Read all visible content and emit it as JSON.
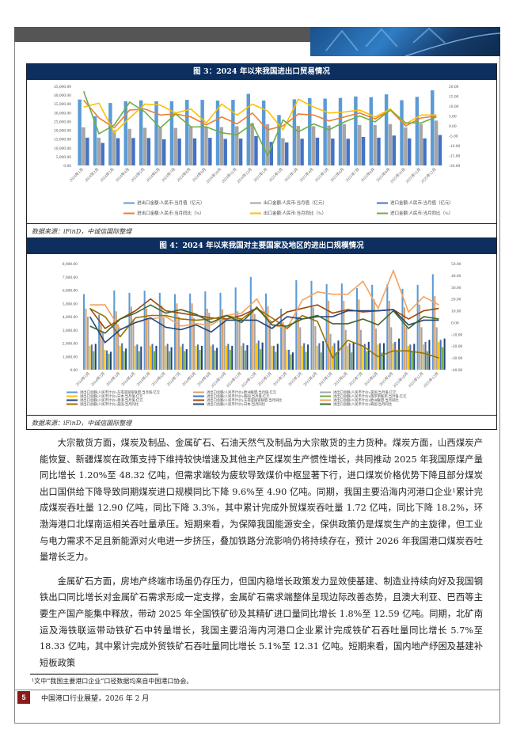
{
  "figure3": {
    "title": "图 3：2024 年以来我国进出口贸易情况",
    "source": "数据来源：iFinD，中诚信国际整理",
    "chart_data": {
      "type": "bar+line",
      "categories": [
        "2024年1月",
        "2024年2月",
        "2024年3月",
        "2024年4月",
        "2024年5月",
        "2024年6月",
        "2024年7月",
        "2024年8月",
        "2024年9月",
        "2024年10月",
        "2024年11月",
        "2024年12月",
        "2025年1月",
        "2025年2月",
        "2025年3月",
        "2025年4月",
        "2025年5月",
        "2025年6月",
        "2025年7月",
        "2025年8月",
        "2025年9月",
        "2025年10月",
        "2025年11月",
        "2025年12月"
      ],
      "ylim": [
        0,
        45000
      ],
      "y2lim": [
        -20,
        20
      ],
      "yticks": [
        "0.00",
        "5,000.00",
        "10,000.00",
        "15,000.00",
        "20,000.00",
        "25,000.00",
        "30,000.00",
        "35,000.00",
        "40,000.00",
        "45,000.00"
      ],
      "y2ticks": [
        "-20.00",
        "-15.00",
        "-10.00",
        "-5.00",
        "0.00",
        "5.00",
        "10.00",
        "15.00",
        "20.00"
      ],
      "bars": [
        {
          "name": "进出口金额:人民币:当月值（亿元）",
          "color": "#5b9bd5",
          "values": [
            37500,
            28000,
            35500,
            36500,
            37000,
            36500,
            36500,
            37300,
            37300,
            36900,
            37300,
            40700,
            36900,
            28700,
            37600,
            38300,
            38000,
            38400,
            39200,
            38800,
            40400,
            37100,
            39000,
            42700
          ]
        },
        {
          "name": "出口金额:人民币:当月值（亿元）",
          "color": "#a5a5a5",
          "values": [
            21700,
            15800,
            20000,
            20800,
            21400,
            21600,
            21300,
            21900,
            21900,
            21800,
            22300,
            24100,
            23500,
            15500,
            22500,
            22300,
            22700,
            23500,
            23000,
            23000,
            23500,
            21600,
            23600,
            25500
          ]
        },
        {
          "name": "进口金额:人民币:当月值（亿元）",
          "color": "#4472c4",
          "values": [
            15800,
            12800,
            15500,
            15600,
            15600,
            14900,
            15300,
            15400,
            15700,
            15100,
            15300,
            16700,
            13400,
            13100,
            15200,
            15800,
            15300,
            15200,
            16200,
            15800,
            17000,
            15400,
            15400,
            17300
          ]
        }
      ],
      "lines": [
        {
          "name": "进出口金额:人民币:当月同比（%）",
          "color": "#ed7d31",
          "values": [
            13,
            4,
            -1,
            8,
            8.5,
            5.5,
            6,
            4.5,
            0.5,
            4.5,
            1,
            6.5,
            -2,
            0,
            6,
            5.5,
            2.5,
            4.5,
            6.5,
            3.5,
            8,
            0,
            4,
            5
          ]
        },
        {
          "name": "出口金额:人民币:当月同比（%）",
          "color": "#ffc000",
          "values": [
            9.5,
            11.5,
            -3.5,
            4,
            11,
            10.5,
            6.5,
            8.5,
            1.5,
            11,
            5.5,
            11,
            7.5,
            -2,
            13.5,
            9.5,
            6.5,
            7,
            8,
            4.5,
            8.5,
            1,
            5.5,
            5.5
          ]
        },
        {
          "name": "进口金额:人民币:当月同比（%）",
          "color": "#70ad47",
          "values": [
            17.5,
            -4,
            0.5,
            12,
            7,
            -1,
            6,
            -0.5,
            -0.5,
            -3.5,
            -4.5,
            1,
            -15,
            3,
            -3,
            1,
            -2,
            2,
            5,
            2,
            8,
            1.5,
            1.5,
            4.5
          ]
        }
      ]
    }
  },
  "figure4": {
    "title": "图 4：2024 年以来我国对主要国家及地区的进出口规模情况",
    "source": "数据来源：iFinD，中诚信国际整理",
    "chart_data": {
      "type": "bar+line",
      "categories": [
        "2024年1月",
        "2024年2月",
        "2024年3月",
        "2024年4月",
        "2024年5月",
        "2024年6月",
        "2024年7月",
        "2024年8月",
        "2024年9月",
        "2024年10月",
        "2024年11月",
        "2024年12月",
        "2025年1月",
        "2025年2月",
        "2025年3月",
        "2025年4月",
        "2025年5月",
        "2025年6月",
        "2025年7月",
        "2025年8月",
        "2025年9月",
        "2025年10月",
        "2025年11月",
        "2025年12月"
      ],
      "ylim": [
        0,
        8000
      ],
      "y2lim": [
        -40,
        50
      ],
      "yticks": [
        "0.00",
        "1,000.00",
        "2,000.00",
        "3,000.00",
        "4,000.00",
        "5,000.00",
        "6,000.00",
        "7,000.00",
        "8,000.00"
      ],
      "y2ticks": [
        "-40.00",
        "-30.00",
        "-20.00",
        "-10.00",
        "0.00",
        "10.00",
        "20.00",
        "30.00",
        "40.00",
        "50.00"
      ],
      "bars": [
        {
          "name": "进出口总额(人民币计价):东南亚国家联盟:当月值:亿元",
          "color": "#5b9bd5",
          "values": [
            5700,
            4150,
            5980,
            5800,
            5950,
            5800,
            5700,
            5750,
            5900,
            5800,
            6200,
            7000,
            5750,
            4600,
            6750,
            6700,
            6450,
            6500,
            6150,
            6400,
            6450,
            6100,
            6400,
            7200
          ]
        },
        {
          "name": "进出口总额(人民币计价):欧洲联盟:当月值:亿元",
          "color": "#dda06c",
          "values": [
            4600,
            3600,
            4400,
            4750,
            4600,
            4850,
            5000,
            5000,
            4600,
            4550,
            4400,
            4600,
            4800,
            3600,
            4000,
            4700,
            5200,
            5200,
            5300,
            5300,
            5200,
            4700,
            4900,
            5550
          ]
        },
        {
          "name": "进出口总额(人民币计价):美国:当月值:亿元",
          "color": "#a5a5a5",
          "values": [
            4000,
            2900,
            3400,
            3800,
            3800,
            3900,
            4000,
            3900,
            4300,
            3900,
            3700,
            4200,
            3500,
            3200,
            3200,
            3300,
            2700,
            3000,
            3000,
            3100,
            3200,
            3200,
            3200,
            3200
          ]
        },
        {
          "name": "进出口总额(人民币计价):日本:当月值:亿元",
          "color": "#ffc000",
          "values": [
            1800,
            1500,
            1800,
            1800,
            1800,
            1800,
            1750,
            1800,
            1800,
            1800,
            1800,
            2000,
            1800,
            1500,
            1800,
            1800,
            1800,
            1800,
            1800,
            1900,
            2000,
            1800,
            1900,
            2100
          ]
        },
        {
          "name": "进出口总额(人民币计价):韩国:当月值:亿元",
          "color": "#4472c4",
          "values": [
            1900,
            1450,
            2000,
            1900,
            1950,
            1950,
            1950,
            1900,
            1900,
            1950,
            2000,
            2200,
            1800,
            1500,
            2000,
            2000,
            2000,
            2000,
            1950,
            2000,
            2100,
            1900,
            2100,
            2250
          ]
        },
        {
          "name": "进出口总额(人民币计价):俄罗斯联邦:当月值:亿元",
          "color": "#70ad47",
          "values": [
            1400,
            1200,
            1400,
            1400,
            1400,
            1400,
            1400,
            1500,
            1450,
            1500,
            1450,
            1550,
            1350,
            1150,
            1350,
            1300,
            1300,
            1300,
            1400,
            1300,
            1400,
            1400,
            1400,
            1700
          ]
        },
        {
          "name": "进出口总额(人民币计价):香港:当月值:亿元",
          "color": "#264478",
          "values": [
            1950,
            1350,
            1600,
            1750,
            1800,
            1700,
            1550,
            1800,
            1650,
            1800,
            1850,
            2050,
            1950,
            1300,
            1900,
            2150,
            2200,
            2050,
            2100,
            2000,
            2350,
            1950,
            2250,
            2350
          ]
        }
      ],
      "lines": [
        {
          "name": "进出口总额(人民币计价):东南亚国家联盟:当月同比",
          "color": "#9e480e",
          "values": [
            12,
            -5,
            3,
            10,
            20,
            10,
            8,
            6,
            4,
            3,
            6,
            12,
            0,
            9,
            12,
            15,
            8,
            11,
            9,
            10,
            11,
            3,
            10,
            12
          ]
        },
        {
          "name": "进出口总额(人民币计价):欧洲联盟:当月同比",
          "color": "#f4a261",
          "values": [
            15,
            15,
            -6,
            0,
            3,
            5,
            -3,
            -1,
            -2,
            6,
            8,
            20,
            -2,
            -5,
            19,
            26,
            24,
            24,
            35,
            12,
            44,
            9,
            22,
            15
          ]
        },
        {
          "name": "进出口总额(人民币计价):美国:当月同比",
          "color": "#997300",
          "values": [
            12,
            5,
            -12,
            4,
            6,
            6,
            3,
            2,
            3,
            6,
            3,
            12,
            4,
            -5,
            6,
            1,
            -30,
            -15,
            -20,
            -29,
            -24,
            -24,
            -26,
            -30
          ]
        },
        {
          "name": "进出口总额(人民币计价):日本:当月同比",
          "color": "#264478",
          "values": [
            5,
            -17,
            -6,
            0,
            4,
            -4,
            -6,
            -2,
            -8,
            2,
            2,
            2,
            -5,
            5,
            3,
            5,
            5,
            10,
            10,
            10,
            11,
            -2,
            2,
            2
          ]
        },
        {
          "name": "进出口总额(人民币计价):韩国:当月同比",
          "color": "#43682b",
          "values": [
            -3,
            -9,
            3,
            8,
            15,
            8,
            11,
            7,
            0,
            6,
            0,
            13,
            -2,
            -3,
            3,
            6,
            -1,
            -1,
            3,
            -2,
            10,
            -5,
            5,
            3
          ]
        }
      ]
    }
  },
  "body": {
    "p1": "大宗散货方面，煤炭及制品、金属矿石、石油天然气及制品为大宗散货的主力货种。煤炭方面，山西煤炭产能恢复、新疆煤炭在政策支持下维持较快增速及其他主产区煤炭生产惯性增长，共同推动 2025 年我国原煤产量同比增长 1.20%至 48.32 亿吨，但需求端较为疲软导致煤价中枢显著下行，进口煤炭价格优势下降且部分煤炭出口国供给下降导致同期煤炭进口规模同比下降 9.6%至 4.90 亿吨。同期，我国主要沿海内河港口企业¹累计完成煤炭吞吐量 12.90 亿吨，同比下降 3.3%，其中累计完成外贸煤炭吞吐量 1.72 亿吨，同比下降 18.2%，环渤海港口北煤南运相关吞吐量承压。短期来看，为保障我国能源安全，保供政策仍是煤炭生产的主旋律，但工业与电力需求不足且新能源对火电进一步挤压，叠加铁路分流影响仍将持续存在，预计 2026 年我国港口煤炭吞吐量增长乏力。",
    "p2": "金属矿石方面，房地产终端市场虽仍存压力，但国内稳增长政策发力显效使基建、制造业持续向好及我国钢铁出口同比增长对金属矿石需求形成一定支撑，金属矿石需求端整体呈现边际改善态势，且澳大利亚、巴西等主要生产国产能集中释放，带动 2025 年全国铁矿砂及其精矿进口量同比增长 1.8%至 12.59 亿吨。同期，北矿南运及海铁联运带动铁矿石中转量增长，我国主要沿海内河港口企业累计完成铁矿石吞吐量同比增长 5.7%至 18.33 亿吨，其中累计完成外贸铁矿石吞吐量同比增长 5.1%至 12.31 亿吨。短期来看，国内地产纾困及基建补短板政策"
  },
  "footnote": "¹文中“我国主要港口企业”口径数据均来自中国港口协会。",
  "footer": {
    "page": "5",
    "text": "中国港口行业展望，2026 年 2 月"
  }
}
